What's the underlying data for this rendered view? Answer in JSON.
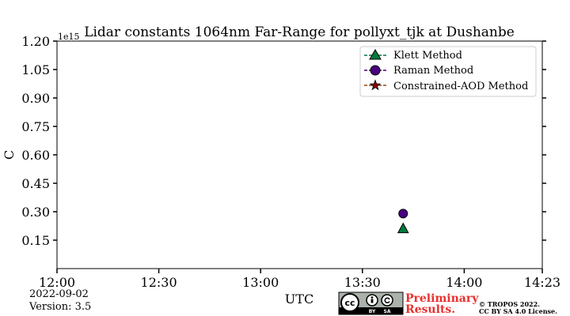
{
  "chart_data": {
    "type": "scatter",
    "title": "Lidar constants 1064nm Far-Range for pollyxt_tjk at Dushanbe",
    "xlabel": "UTC",
    "ylabel": "C",
    "y_multiplier": "1e15",
    "x_range": [
      "12:00",
      "14:23"
    ],
    "x_ticks": [
      "12:00",
      "12:30",
      "13:00",
      "13:30",
      "14:00",
      "14:23"
    ],
    "ylim": [
      0,
      1.2
    ],
    "y_ticks": [
      "0.15",
      "0.30",
      "0.45",
      "0.60",
      "0.75",
      "0.90",
      "1.05",
      "1.20"
    ],
    "grid": false,
    "legend_position": "top-right",
    "series": [
      {
        "name": "Klett Method",
        "marker": "triangle",
        "color": "#007a3d",
        "points": [
          {
            "x": "13:42",
            "y": 0.21
          }
        ]
      },
      {
        "name": "Raman Method",
        "marker": "circle",
        "color": "#4b0082",
        "points": [
          {
            "x": "13:42",
            "y": 0.29
          }
        ]
      },
      {
        "name": "Constrained-AOD Method",
        "marker": "star",
        "color": "#8b0000",
        "points": []
      }
    ]
  },
  "footer": {
    "date": "2022-09-02",
    "version": "Version: 3.5",
    "preliminary_line1": "Preliminary",
    "preliminary_line2": "Results.",
    "copyright_line1": "© TROPOS 2022.",
    "copyright_line2": "CC BY SA 4.0 License.",
    "license_badge": {
      "cc": "cc",
      "by": "BY",
      "sa": "SA"
    }
  }
}
